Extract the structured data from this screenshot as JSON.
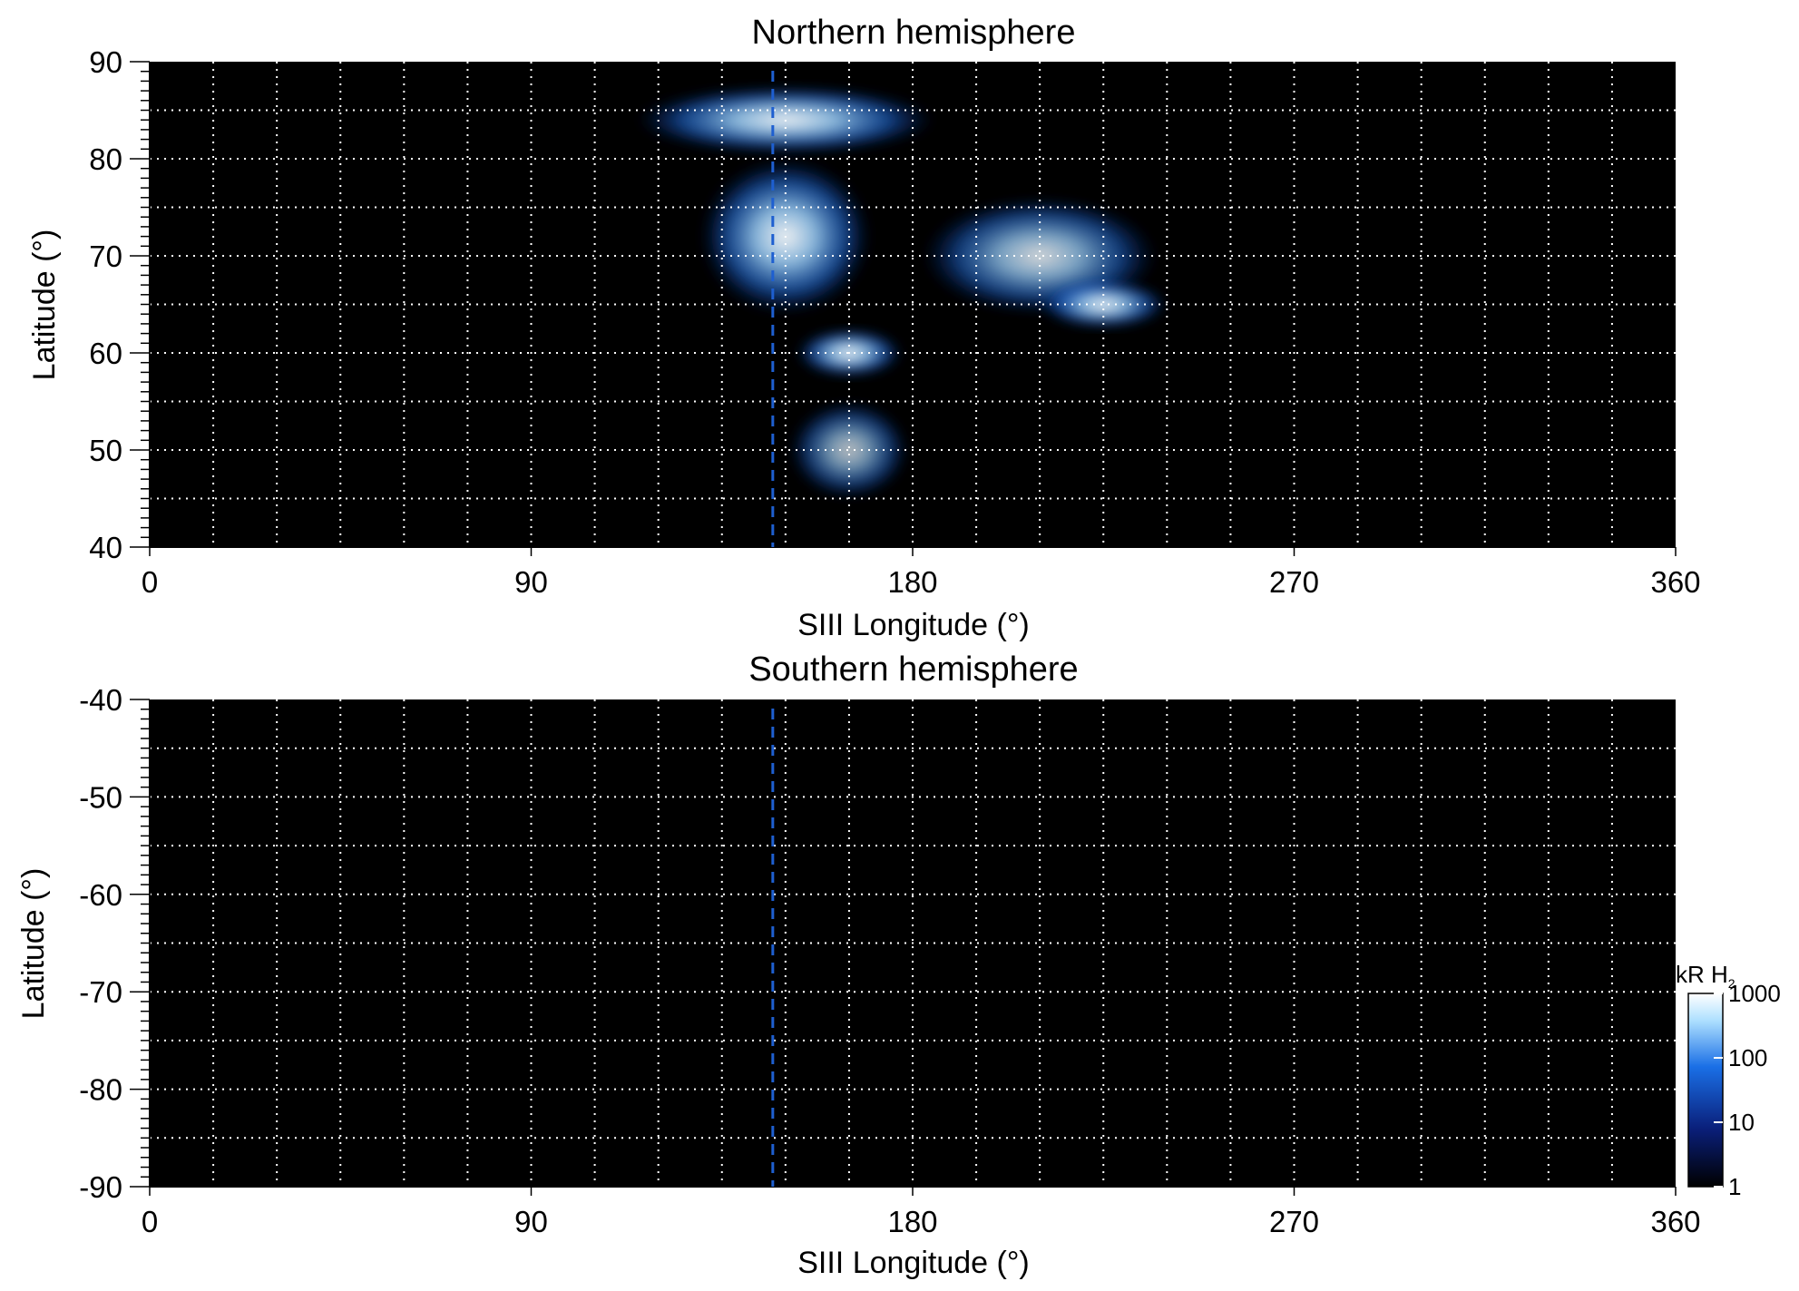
{
  "chart_data": [
    {
      "type": "heatmap",
      "title": "Northern hemisphere",
      "xlabel": "SIII Longitude (°)",
      "ylabel": "Latitude (°)",
      "xlim": [
        0,
        360
      ],
      "ylim": [
        40,
        90
      ],
      "x_ticks": [
        0,
        90,
        180,
        270,
        360
      ],
      "y_ticks": [
        40,
        50,
        60,
        70,
        80,
        90
      ],
      "x_grid_step": 15,
      "y_grid_step": 5,
      "grid": true,
      "marker_longitude": 147,
      "emission_lobes": [
        {
          "lon": 150,
          "lat": 84,
          "width": 70,
          "height": 7,
          "intensity": 1000
        },
        {
          "lon": 150,
          "lat": 72,
          "width": 40,
          "height": 16,
          "intensity": 400
        },
        {
          "lon": 210,
          "lat": 70,
          "width": 55,
          "height": 12,
          "intensity": 150
        },
        {
          "lon": 225,
          "lat": 65,
          "width": 30,
          "height": 5,
          "intensity": 500
        },
        {
          "lon": 165,
          "lat": 60,
          "width": 25,
          "height": 5,
          "intensity": 600
        },
        {
          "lon": 165,
          "lat": 50,
          "width": 28,
          "height": 10,
          "intensity": 60
        }
      ]
    },
    {
      "type": "heatmap",
      "title": "Southern hemisphere",
      "xlabel": "SIII Longitude (°)",
      "ylabel": "Latitude (°)",
      "xlim": [
        0,
        360
      ],
      "ylim": [
        -90,
        -40
      ],
      "x_ticks": [
        0,
        90,
        180,
        270,
        360
      ],
      "y_ticks": [
        -40,
        -50,
        -60,
        -70,
        -80,
        -90
      ],
      "x_grid_step": 15,
      "y_grid_step": 5,
      "grid": true,
      "marker_longitude": 147,
      "emission_lobes": []
    }
  ],
  "colorbar": {
    "label_main": "kR H",
    "label_sub": "2",
    "scale": "log",
    "range": [
      1,
      1000
    ],
    "ticks": [
      "1000",
      "100",
      "10",
      "1"
    ],
    "colors": [
      "#000000",
      "#0a1f7a",
      "#1a6fe6",
      "#aee0ff",
      "#ffffff"
    ]
  },
  "colors": {
    "background": "#000000",
    "grid": "#ffffff",
    "marker": "#1e5fd0"
  }
}
